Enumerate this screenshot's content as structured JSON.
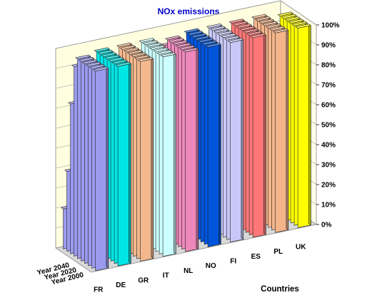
{
  "chart_data": {
    "type": "bar",
    "subtype": "3d-column-stacked-percent",
    "title": "NOx emissions",
    "xlabel": "Countries",
    "ylabel": "",
    "ylim": [
      0,
      100
    ],
    "y_ticks": [
      "0%",
      "10%",
      "20%",
      "30%",
      "40%",
      "50%",
      "60%",
      "70%",
      "80%",
      "90%",
      "100%"
    ],
    "grid": true,
    "categories": [
      "FR",
      "DE",
      "GR",
      "IT",
      "NL",
      "NO",
      "FI",
      "ES",
      "PL",
      "UK"
    ],
    "depth_labels": [
      "Year 2000",
      "Year 2020",
      "Year 2040"
    ],
    "colors": [
      "#9a9aee",
      "#00e6e6",
      "#f4b88c",
      "#ccffff",
      "#ee88bb",
      "#0055dd",
      "#c8c8f8",
      "#ff7777",
      "#f5b58a",
      "#ffff00"
    ],
    "series": [
      {
        "values": [
          100,
          100,
          100,
          100,
          100,
          100,
          100,
          100,
          100,
          100
        ]
      },
      {
        "values": [
          100,
          100,
          100,
          100,
          100,
          100,
          100,
          100,
          100,
          100
        ]
      },
      {
        "values": [
          100,
          100,
          100,
          100,
          100,
          100,
          100,
          100,
          100,
          100
        ]
      },
      {
        "values": [
          100,
          100,
          100,
          100,
          100,
          100,
          100,
          100,
          100,
          100
        ]
      },
      {
        "values": [
          100,
          100,
          100,
          100,
          100,
          100,
          100,
          100,
          100,
          100
        ]
      },
      {
        "values": [
          100,
          100,
          100,
          100,
          100,
          100,
          100,
          100,
          100,
          100
        ]
      },
      {
        "values": [
          95,
          100,
          100,
          100,
          96,
          100,
          100,
          100,
          100,
          70
        ]
      },
      {
        "values": [
          75,
          70,
          67,
          72,
          70,
          62,
          65,
          70,
          57,
          48
        ]
      },
      {
        "values": [
          40,
          47,
          47,
          50,
          58,
          53,
          60,
          55,
          55,
          37
        ]
      },
      {
        "values": [
          20,
          25,
          21,
          23,
          23,
          27,
          25,
          27,
          28,
          30
        ]
      }
    ]
  }
}
